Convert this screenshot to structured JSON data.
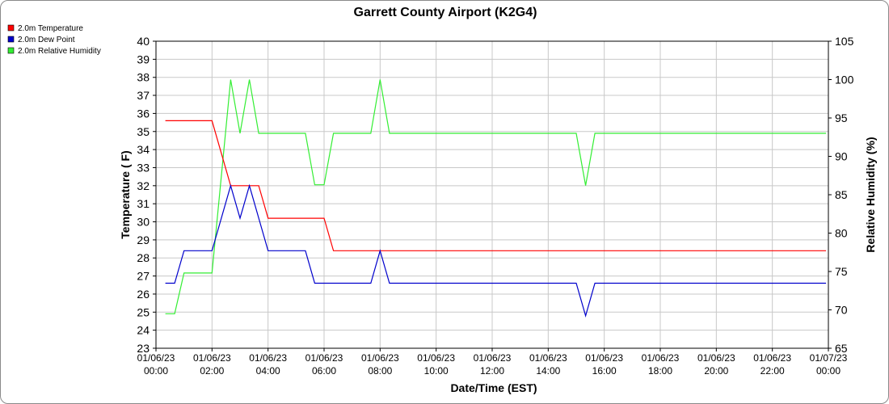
{
  "chart_data": {
    "type": "line",
    "title": "Garrett County Airport (K2G4)",
    "xlabel": "Date/Time (EST)",
    "ylabel": "Temperature ( F)",
    "y2label": "Relative Humidity (%)",
    "xlim": [
      "2023-01-06 00:00",
      "2023-01-07 00:00"
    ],
    "ylim": [
      23,
      40
    ],
    "y2lim": [
      65,
      105
    ],
    "yticks": [
      "23",
      "24",
      "25",
      "26",
      "27",
      "28",
      "29",
      "30",
      "31",
      "32",
      "33",
      "34",
      "35",
      "36",
      "37",
      "38",
      "39",
      "40"
    ],
    "y2ticks": [
      "65",
      "70",
      "75",
      "80",
      "85",
      "90",
      "95",
      "100",
      "105"
    ],
    "xticks": [
      {
        "line1": "01/06/23",
        "line2": "00:00"
      },
      {
        "line1": "01/06/23",
        "line2": "02:00"
      },
      {
        "line1": "01/06/23",
        "line2": "04:00"
      },
      {
        "line1": "01/06/23",
        "line2": "06:00"
      },
      {
        "line1": "01/06/23",
        "line2": "08:00"
      },
      {
        "line1": "01/06/23",
        "line2": "10:00"
      },
      {
        "line1": "01/06/23",
        "line2": "12:00"
      },
      {
        "line1": "01/06/23",
        "line2": "14:00"
      },
      {
        "line1": "01/06/23",
        "line2": "16:00"
      },
      {
        "line1": "01/06/23",
        "line2": "18:00"
      },
      {
        "line1": "01/06/23",
        "line2": "20:00"
      },
      {
        "line1": "01/06/23",
        "line2": "22:00"
      },
      {
        "line1": "01/07/23",
        "line2": "00:00"
      }
    ],
    "grid": true,
    "legend_position": "top-left",
    "series": [
      {
        "name": "2.0m Temperature",
        "color": "#ff0000",
        "axis": "left",
        "x": [
          "01/06/23 00:20",
          "01/06/23 02:00",
          "01/06/23 02:40",
          "01/06/23 03:00",
          "01/06/23 03:20",
          "01/06/23 03:40",
          "01/06/23 04:00",
          "01/06/23 05:00",
          "01/06/23 05:20",
          "01/06/23 06:00",
          "01/06/23 06:20",
          "01/06/23 08:00",
          "01/06/23 15:00",
          "01/06/23 16:00",
          "01/06/23 23:55"
        ],
        "y": [
          35.6,
          35.6,
          32.0,
          32.0,
          32.0,
          32.0,
          30.2,
          30.2,
          30.2,
          30.2,
          28.4,
          28.4,
          28.4,
          28.4,
          28.4
        ]
      },
      {
        "name": "2.0m Dew Point",
        "color": "#0000cc",
        "axis": "left",
        "x": [
          "01/06/23 00:20",
          "01/06/23 00:40",
          "01/06/23 01:00",
          "01/06/23 02:00",
          "01/06/23 02:40",
          "01/06/23 03:00",
          "01/06/23 03:20",
          "01/06/23 04:00",
          "01/06/23 05:20",
          "01/06/23 05:40",
          "01/06/23 07:40",
          "01/06/23 08:00",
          "01/06/23 08:20",
          "01/06/23 15:00",
          "01/06/23 15:20",
          "01/06/23 15:40",
          "01/06/23 23:55"
        ],
        "y": [
          26.6,
          26.6,
          28.4,
          28.4,
          32.0,
          30.2,
          32.0,
          28.4,
          28.4,
          26.6,
          26.6,
          28.4,
          26.6,
          26.6,
          24.8,
          26.6,
          26.6
        ]
      },
      {
        "name": "2.0m Relative Humidity",
        "color": "#33ee33",
        "axis": "right",
        "x": [
          "01/06/23 00:20",
          "01/06/23 00:40",
          "01/06/23 01:00",
          "01/06/23 02:00",
          "01/06/23 02:40",
          "01/06/23 03:00",
          "01/06/23 03:20",
          "01/06/23 03:40",
          "01/06/23 05:20",
          "01/06/23 05:40",
          "01/06/23 06:00",
          "01/06/23 06:20",
          "01/06/23 07:40",
          "01/06/23 08:00",
          "01/06/23 08:20",
          "01/06/23 15:00",
          "01/06/23 15:20",
          "01/06/23 15:40",
          "01/06/23 23:55"
        ],
        "y": [
          69.5,
          69.5,
          74.8,
          74.8,
          100,
          93,
          100,
          93,
          93,
          86.3,
          86.3,
          93,
          93,
          100,
          93,
          93,
          86.2,
          93,
          93
        ]
      }
    ]
  }
}
